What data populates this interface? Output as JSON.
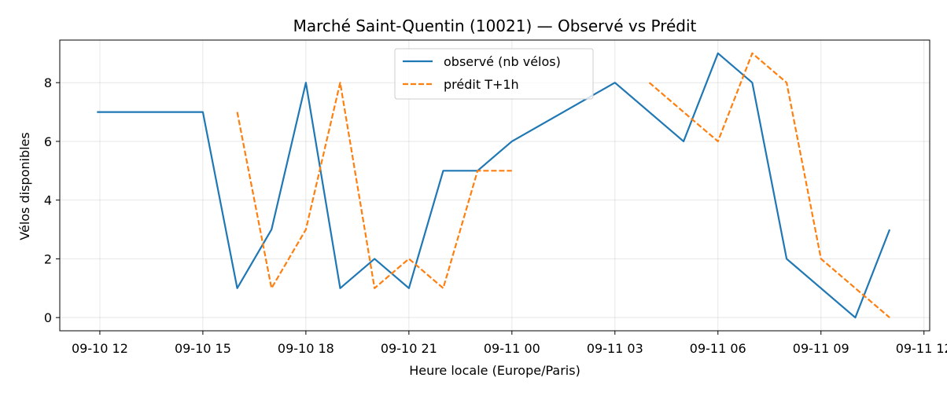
{
  "chart_data": {
    "type": "line",
    "title": "Marché Saint-Quentin (10021) — Observé vs Prédit",
    "xlabel": "Heure locale (Europe/Paris)",
    "ylabel": "Vélos disponibles",
    "xlim": [
      "2025-09-10 11:50",
      "2025-09-11 13:10"
    ],
    "ylim": [
      -0.45,
      9.45
    ],
    "x_ticks": [
      {
        "t": "2025-09-10 13:00",
        "label": "09-10 12"
      },
      {
        "t": "2025-09-10 16:00",
        "label": "09-10 15"
      },
      {
        "t": "2025-09-10 19:00",
        "label": "09-10 18"
      },
      {
        "t": "2025-09-10 22:00",
        "label": "09-10 21"
      },
      {
        "t": "2025-09-11 01:00",
        "label": "09-11 00"
      },
      {
        "t": "2025-09-11 04:00",
        "label": "09-11 03"
      },
      {
        "t": "2025-09-11 07:00",
        "label": "09-11 06"
      },
      {
        "t": "2025-09-11 10:00",
        "label": "09-11 09"
      },
      {
        "t": "2025-09-11 13:00",
        "label": "09-11 12"
      }
    ],
    "y_ticks": [
      0,
      2,
      4,
      6,
      8
    ],
    "grid": true,
    "legend": "top-center",
    "series": [
      {
        "name": "observé (nb vélos)",
        "color": "#1f77b4",
        "style": "solid",
        "points": [
          [
            "2025-09-10 12:55",
            7
          ],
          [
            "2025-09-10 16:00",
            7
          ],
          [
            "2025-09-10 17:00",
            1
          ],
          [
            "2025-09-10 18:00",
            3
          ],
          [
            "2025-09-10 19:00",
            8
          ],
          [
            "2025-09-10 20:00",
            1
          ],
          [
            "2025-09-10 21:00",
            2
          ],
          [
            "2025-09-10 22:00",
            1
          ],
          [
            "2025-09-10 23:00",
            5
          ],
          [
            "2025-09-11 00:00",
            5
          ],
          [
            "2025-09-11 01:00",
            6
          ],
          [
            "2025-09-11 04:00",
            8
          ],
          [
            "2025-09-11 06:00",
            6
          ],
          [
            "2025-09-11 07:00",
            9
          ],
          [
            "2025-09-11 08:00",
            8
          ],
          [
            "2025-09-11 09:00",
            2
          ],
          [
            "2025-09-11 11:00",
            0
          ],
          [
            "2025-09-11 12:00",
            3
          ]
        ]
      },
      {
        "name": "prédit T+1h",
        "color": "#ff7f0e",
        "style": "dashed",
        "segments": [
          [
            [
              "2025-09-10 17:00",
              7
            ],
            [
              "2025-09-10 18:00",
              1
            ],
            [
              "2025-09-10 19:00",
              3
            ],
            [
              "2025-09-10 20:00",
              8
            ],
            [
              "2025-09-10 21:00",
              1
            ],
            [
              "2025-09-10 22:00",
              2
            ],
            [
              "2025-09-10 23:00",
              1
            ],
            [
              "2025-09-11 00:00",
              5
            ],
            [
              "2025-09-11 01:00",
              5
            ]
          ],
          [
            [
              "2025-09-11 05:00",
              8
            ],
            [
              "2025-09-11 06:00",
              7
            ],
            [
              "2025-09-11 07:00",
              6
            ],
            [
              "2025-09-11 08:00",
              9
            ],
            [
              "2025-09-11 09:00",
              8
            ],
            [
              "2025-09-11 10:00",
              2
            ],
            [
              "2025-09-11 11:00",
              1
            ],
            [
              "2025-09-11 12:00",
              0
            ]
          ]
        ]
      }
    ]
  }
}
